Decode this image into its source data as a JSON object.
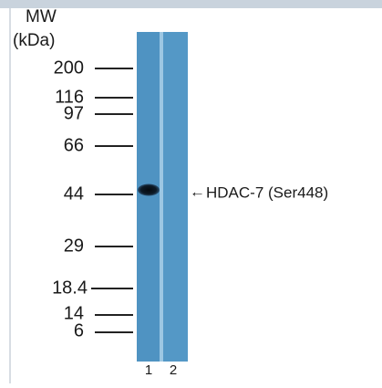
{
  "header": {
    "title": "MW",
    "unit": "(kDa)"
  },
  "markers": [
    "200",
    "116",
    "97",
    "66",
    "44",
    "29",
    "18.4",
    "14",
    "6"
  ],
  "lanes": [
    "1",
    "2"
  ],
  "annotation": {
    "arrow": "←",
    "label": "HDAC-7 (Ser448)"
  }
}
